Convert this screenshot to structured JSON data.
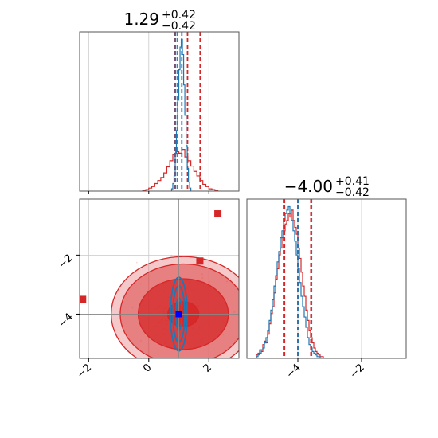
{
  "colors": {
    "red": "#d62728",
    "blue": "#1f77b4",
    "marker_blue": "#0000ff",
    "grid": "#c8c8c8",
    "spine": "#555555"
  },
  "chart_data": [
    {
      "type": "histogram",
      "panel": "param-0-marginal",
      "title": {
        "value": "1.29",
        "upper": "+0.42",
        "lower": "−0.42"
      },
      "xlim": [
        -2.3,
        3.0
      ],
      "grid": true,
      "series": [
        {
          "color": "red",
          "bins_start": -0.2,
          "bin_width": 0.1,
          "counts": [
            1,
            2,
            4,
            6,
            10,
            14,
            18,
            24,
            32,
            40,
            48,
            52,
            50,
            55,
            45,
            40,
            33,
            26,
            20,
            14,
            9,
            6,
            3,
            2,
            1
          ],
          "quantiles": [
            0.87,
            1.29,
            1.71
          ]
        },
        {
          "color": "blue",
          "bins_start": 0.76,
          "bin_width": 0.04,
          "counts": [
            3,
            10,
            20,
            50,
            80,
            120,
            160,
            190,
            200,
            180,
            140,
            100,
            60,
            30,
            12,
            4
          ],
          "quantiles": [
            0.89,
            0.96,
            1.1
          ]
        }
      ]
    },
    {
      "type": "histogram",
      "panel": "param-1-marginal",
      "title": {
        "value": "−4.00",
        "upper": "+0.41",
        "lower": "−0.42"
      },
      "xlim": [
        -5.6,
        -0.6
      ],
      "xticks": [
        -4,
        -2
      ],
      "xtick_labels": [
        "−4",
        "−2"
      ],
      "grid": true,
      "series": [
        {
          "color": "red",
          "bins_start": -5.3,
          "bin_width": 0.05,
          "counts": [
            2,
            3,
            5,
            4,
            8,
            10,
            9,
            14,
            20,
            26,
            30,
            38,
            46,
            52,
            60,
            64,
            70,
            74,
            78,
            80,
            84,
            82,
            86,
            80,
            76,
            72,
            64,
            58,
            50,
            42,
            36,
            28,
            22,
            16,
            12,
            9,
            6,
            4,
            3,
            2,
            1,
            1
          ],
          "quantiles": [
            -4.42,
            -4.0,
            -3.59
          ]
        },
        {
          "color": "blue",
          "bins_start": -5.3,
          "bin_width": 0.05,
          "counts": [
            1,
            2,
            3,
            5,
            6,
            9,
            12,
            16,
            22,
            28,
            34,
            42,
            48,
            56,
            62,
            70,
            74,
            80,
            84,
            86,
            88,
            84,
            80,
            74,
            68,
            60,
            52,
            44,
            36,
            30,
            24,
            18,
            12,
            8,
            6,
            4,
            3,
            2,
            1,
            1
          ],
          "quantiles": [
            -4.45,
            -4.0,
            -3.57
          ]
        }
      ]
    },
    {
      "type": "scatter",
      "panel": "joint-2d",
      "xlim": [
        -2.3,
        3.0
      ],
      "ylim": [
        -5.5,
        -0.1
      ],
      "xticks": [
        -2,
        0,
        2
      ],
      "xtick_labels": [
        "−2",
        "0",
        "2"
      ],
      "yticks": [
        -4,
        -2
      ],
      "ytick_labels": [
        "−4",
        "−2"
      ],
      "grid": true,
      "red_contours": [
        {
          "cx": 1.15,
          "cy": -4.0,
          "rx": 0.52,
          "ry": 0.42
        },
        {
          "cx": 1.15,
          "cy": -4.0,
          "rx": 1.5,
          "ry": 1.2
        },
        {
          "cx": 1.15,
          "cy": -4.0,
          "rx": 2.1,
          "ry": 1.7
        },
        {
          "cx": 1.15,
          "cy": -4.0,
          "rx": 2.4,
          "ry": 1.95
        }
      ],
      "blue_contours": [
        {
          "cx": 1.0,
          "cy": -4.0,
          "rx": 0.1,
          "ry": 0.55
        },
        {
          "cx": 1.0,
          "cy": -4.0,
          "rx": 0.2,
          "ry": 0.95
        },
        {
          "cx": 1.0,
          "cy": -4.0,
          "rx": 0.28,
          "ry": 1.25
        }
      ],
      "red_points": [
        {
          "x": -2.2,
          "y": -3.5
        },
        {
          "x": 1.7,
          "y": -2.2
        },
        {
          "x": 2.3,
          "y": -0.6
        },
        {
          "x": 1.0,
          "y": -4.0
        }
      ],
      "blue_points": [
        {
          "x": 1.0,
          "y": -4.0
        }
      ],
      "truth_lines": {
        "x": 1.0,
        "y": -4.0
      }
    }
  ]
}
